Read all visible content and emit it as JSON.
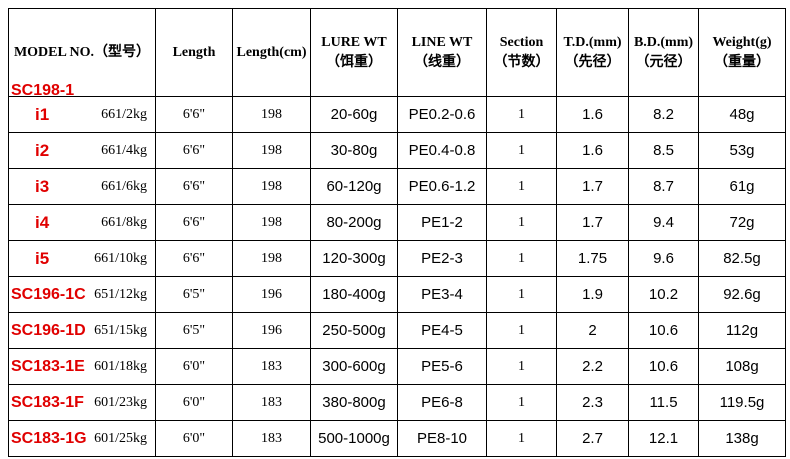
{
  "table": {
    "header": [
      "MODEL NO.（型号）",
      "Length",
      "Length(cm)",
      "LURE WT（饵重）",
      "LINE WT（线重）",
      "Section（节数）",
      "T.D.(mm)（先径）",
      "B.D.(mm)（元径）",
      "Weight(g)（重量）"
    ],
    "series_label": "SC198-1",
    "rows": [
      {
        "tag": "i1",
        "cells": [
          "661/2kg",
          "6'6\"",
          "198",
          "20-60g",
          "PE0.2-0.6",
          "1",
          "1.6",
          "8.2",
          "48g"
        ]
      },
      {
        "tag": "i2",
        "cells": [
          "661/4kg",
          "6'6\"",
          "198",
          "30-80g",
          "PE0.4-0.8",
          "1",
          "1.6",
          "8.5",
          "53g"
        ]
      },
      {
        "tag": "i3",
        "cells": [
          "661/6kg",
          "6'6\"",
          "198",
          "60-120g",
          "PE0.6-1.2",
          "1",
          "1.7",
          "8.7",
          "61g"
        ]
      },
      {
        "tag": "i4",
        "cells": [
          "661/8kg",
          "6'6\"",
          "198",
          "80-200g",
          "PE1-2",
          "1",
          "1.7",
          "9.4",
          "72g"
        ]
      },
      {
        "tag": "i5",
        "cells": [
          "661/10kg",
          "6'6\"",
          "198",
          "120-300g",
          "PE2-3",
          "1",
          "1.75",
          "9.6",
          "82.5g"
        ]
      },
      {
        "tag": "SC196-1C",
        "cells": [
          "651/12kg",
          "6'5\"",
          "196",
          "180-400g",
          "PE3-4",
          "1",
          "1.9",
          "10.2",
          "92.6g"
        ]
      },
      {
        "tag": "SC196-1D",
        "cells": [
          "651/15kg",
          "6'5\"",
          "196",
          "250-500g",
          "PE4-5",
          "1",
          "2",
          "10.6",
          "112g"
        ]
      },
      {
        "tag": "SC183-1E",
        "cells": [
          "601/18kg",
          "6'0\"",
          "183",
          "300-600g",
          "PE5-6",
          "1",
          "2.2",
          "10.6",
          "108g"
        ]
      },
      {
        "tag": "SC183-1F",
        "cells": [
          "601/23kg",
          "6'0\"",
          "183",
          "380-800g",
          "PE6-8",
          "1",
          "2.3",
          "11.5",
          "119.5g"
        ]
      },
      {
        "tag": "SC183-1G",
        "cells": [
          "601/25kg",
          "6'0\"",
          "183",
          "500-1000g",
          "PE8-10",
          "1",
          "2.7",
          "12.1",
          "138g"
        ]
      }
    ]
  }
}
